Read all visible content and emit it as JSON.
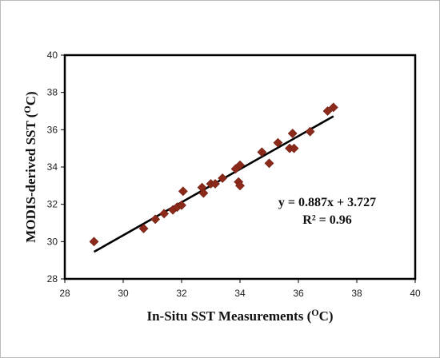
{
  "chart_data": {
    "type": "scatter",
    "xlabel": "In-Situ SST Measurements (",
    "xlabel_sup": "O",
    "xlabel_end": "C)",
    "ylabel": "MODIS-derived SST (",
    "ylabel_sup": "O",
    "ylabel_end": "C)",
    "xlim": [
      28,
      40
    ],
    "ylim": [
      28,
      40
    ],
    "xticks": [
      28,
      30,
      32,
      34,
      36,
      38,
      40
    ],
    "yticks": [
      28,
      30,
      32,
      34,
      36,
      38,
      40
    ],
    "x_tick_labels": [
      "28",
      "30",
      "32",
      "34",
      "36",
      "38",
      "40"
    ],
    "y_tick_labels": [
      "28",
      "30",
      "32",
      "34",
      "36",
      "38",
      "40"
    ],
    "grid": false,
    "marker": "diamond",
    "marker_color": "#8b2a1a",
    "line_color": "#000000",
    "points": [
      {
        "x": 29.0,
        "y": 30.0
      },
      {
        "x": 30.7,
        "y": 30.7
      },
      {
        "x": 31.1,
        "y": 31.2
      },
      {
        "x": 31.4,
        "y": 31.5
      },
      {
        "x": 31.7,
        "y": 31.7
      },
      {
        "x": 31.85,
        "y": 31.85
      },
      {
        "x": 32.0,
        "y": 31.95
      },
      {
        "x": 32.05,
        "y": 32.7
      },
      {
        "x": 32.7,
        "y": 32.9
      },
      {
        "x": 32.75,
        "y": 32.6
      },
      {
        "x": 33.0,
        "y": 33.1
      },
      {
        "x": 33.15,
        "y": 33.1
      },
      {
        "x": 33.4,
        "y": 33.4
      },
      {
        "x": 33.85,
        "y": 33.9
      },
      {
        "x": 34.0,
        "y": 34.1
      },
      {
        "x": 33.95,
        "y": 33.2
      },
      {
        "x": 34.0,
        "y": 33.0
      },
      {
        "x": 34.75,
        "y": 34.8
      },
      {
        "x": 35.0,
        "y": 34.2
      },
      {
        "x": 35.3,
        "y": 35.3
      },
      {
        "x": 35.7,
        "y": 35.0
      },
      {
        "x": 35.8,
        "y": 35.8
      },
      {
        "x": 35.85,
        "y": 35.0
      },
      {
        "x": 36.4,
        "y": 35.9
      },
      {
        "x": 37.0,
        "y": 37.0
      },
      {
        "x": 37.2,
        "y": 37.2
      }
    ],
    "trendline": {
      "slope": 0.887,
      "intercept": 3.727,
      "x_range": [
        29.0,
        37.2
      ]
    },
    "equation_label": "y = 0.887x + 3.727",
    "r2_label": "R² = 0.96"
  }
}
